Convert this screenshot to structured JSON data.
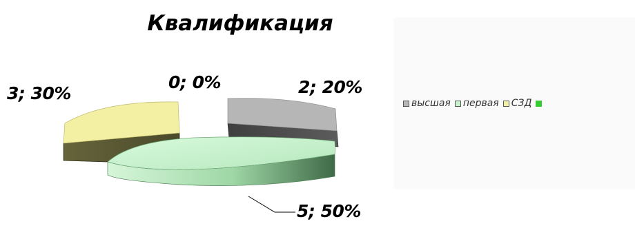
{
  "chart_data": {
    "type": "pie",
    "title": "Квалификация",
    "categories": [
      "высшая",
      "первая",
      "СЗД",
      ""
    ],
    "values": [
      2,
      5,
      3,
      0
    ],
    "percent_labels": [
      "2; 20%",
      "5; 50%",
      "3; 30%",
      "0; 0%"
    ],
    "legend_labels": [
      "высшая",
      "первая",
      "СЗД"
    ],
    "legend_position": "right",
    "style": "3d-exploded",
    "colors": {
      "высшая": "#b6b6b6",
      "первая": "#c6f2cc",
      "СЗД": "#f3f0a4",
      "fourth": "#33cc33"
    }
  }
}
